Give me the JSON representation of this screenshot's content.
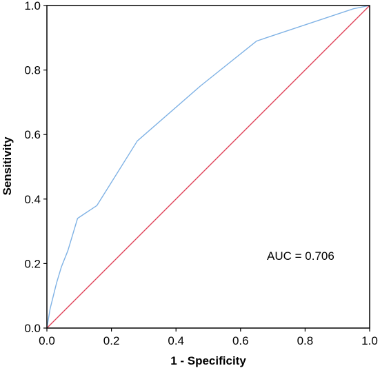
{
  "chart_data": {
    "type": "line",
    "title": "",
    "xlabel": "1 - Specificity",
    "ylabel": "Sensitivity",
    "xlim": [
      0.0,
      1.0
    ],
    "ylim": [
      0.0,
      1.0
    ],
    "x_ticks": [
      "0.0",
      "0.2",
      "0.4",
      "0.6",
      "0.8",
      "1.0"
    ],
    "y_ticks": [
      "0.0",
      "0.2",
      "0.4",
      "0.6",
      "0.8",
      "1.0"
    ],
    "grid": false,
    "legend": "none",
    "annotation": "AUC = 0.706",
    "series": [
      {
        "color": "#7fb2e5",
        "points": [
          [
            0.0,
            0.0
          ],
          [
            0.005,
            0.03
          ],
          [
            0.01,
            0.06
          ],
          [
            0.02,
            0.1
          ],
          [
            0.03,
            0.14
          ],
          [
            0.045,
            0.19
          ],
          [
            0.065,
            0.24
          ],
          [
            0.08,
            0.29
          ],
          [
            0.095,
            0.34
          ],
          [
            0.155,
            0.38
          ],
          [
            0.28,
            0.58
          ],
          [
            0.475,
            0.75
          ],
          [
            0.65,
            0.89
          ],
          [
            0.95,
            0.99
          ],
          [
            1.0,
            1.0
          ]
        ]
      },
      {
        "color": "#e0445a",
        "points": [
          [
            0.0,
            0.0
          ],
          [
            1.0,
            1.0
          ]
        ]
      }
    ]
  }
}
